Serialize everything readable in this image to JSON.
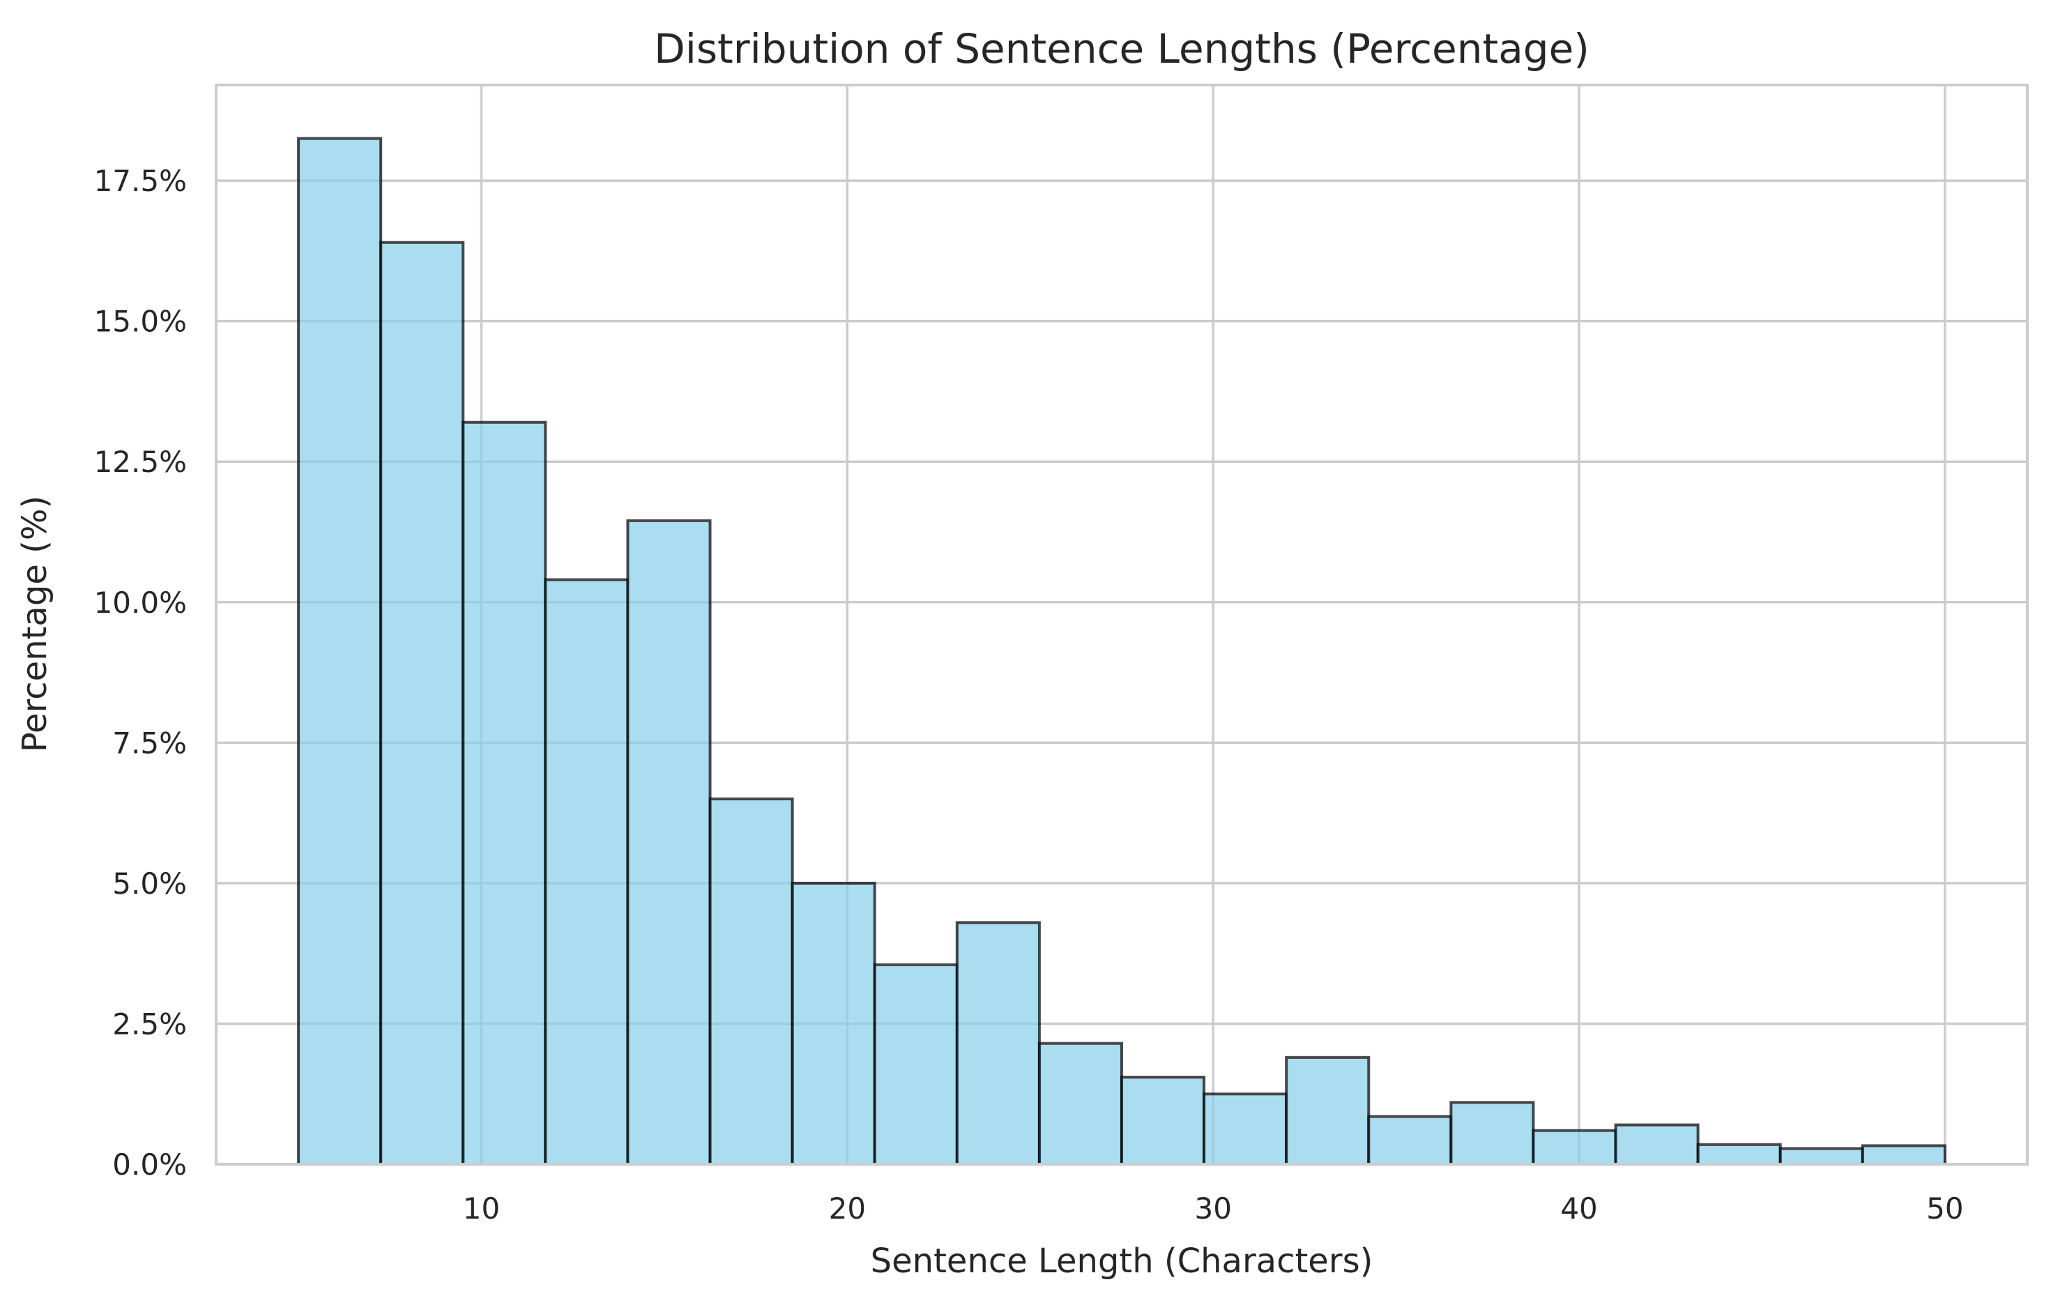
{
  "chart_data": {
    "type": "bar",
    "title": "Distribution of Sentence Lengths (Percentage)",
    "xlabel": "Sentence Length (Characters)",
    "ylabel": "Percentage (%)",
    "x_ticks": [
      10,
      20,
      30,
      40,
      50
    ],
    "x_tick_labels": [
      "10",
      "20",
      "30",
      "40",
      "50"
    ],
    "y_ticks": [
      0,
      2.5,
      5,
      7.5,
      10,
      12.5,
      15,
      17.5
    ],
    "y_tick_labels": [
      "0.0%",
      "2.5%",
      "5.0%",
      "7.5%",
      "10.0%",
      "12.5%",
      "15.0%",
      "17.5%"
    ],
    "xlim": [
      2.75,
      52.25
    ],
    "ylim": [
      0,
      19.2
    ],
    "grid": true,
    "colors": {
      "bar_fill": "#87CEEB",
      "bar_edge": "#000000",
      "grid": "#cccccc",
      "text": "#262626"
    },
    "bins": [
      {
        "start": 5.0,
        "end": 7.25,
        "value": 18.25
      },
      {
        "start": 7.25,
        "end": 9.5,
        "value": 16.4
      },
      {
        "start": 9.5,
        "end": 11.75,
        "value": 13.2
      },
      {
        "start": 11.75,
        "end": 14.0,
        "value": 10.4
      },
      {
        "start": 14.0,
        "end": 16.25,
        "value": 11.45
      },
      {
        "start": 16.25,
        "end": 18.5,
        "value": 6.5
      },
      {
        "start": 18.5,
        "end": 20.75,
        "value": 5.0
      },
      {
        "start": 20.75,
        "end": 23.0,
        "value": 3.55
      },
      {
        "start": 23.0,
        "end": 25.25,
        "value": 4.3
      },
      {
        "start": 25.25,
        "end": 27.5,
        "value": 2.15
      },
      {
        "start": 27.5,
        "end": 29.75,
        "value": 1.55
      },
      {
        "start": 29.75,
        "end": 32.0,
        "value": 1.25
      },
      {
        "start": 32.0,
        "end": 34.25,
        "value": 1.9
      },
      {
        "start": 34.25,
        "end": 36.5,
        "value": 0.85
      },
      {
        "start": 36.5,
        "end": 38.75,
        "value": 1.1
      },
      {
        "start": 38.75,
        "end": 41.0,
        "value": 0.6
      },
      {
        "start": 41.0,
        "end": 43.25,
        "value": 0.7
      },
      {
        "start": 43.25,
        "end": 45.5,
        "value": 0.35
      },
      {
        "start": 45.5,
        "end": 47.75,
        "value": 0.28
      },
      {
        "start": 47.75,
        "end": 50.0,
        "value": 0.33
      }
    ]
  }
}
